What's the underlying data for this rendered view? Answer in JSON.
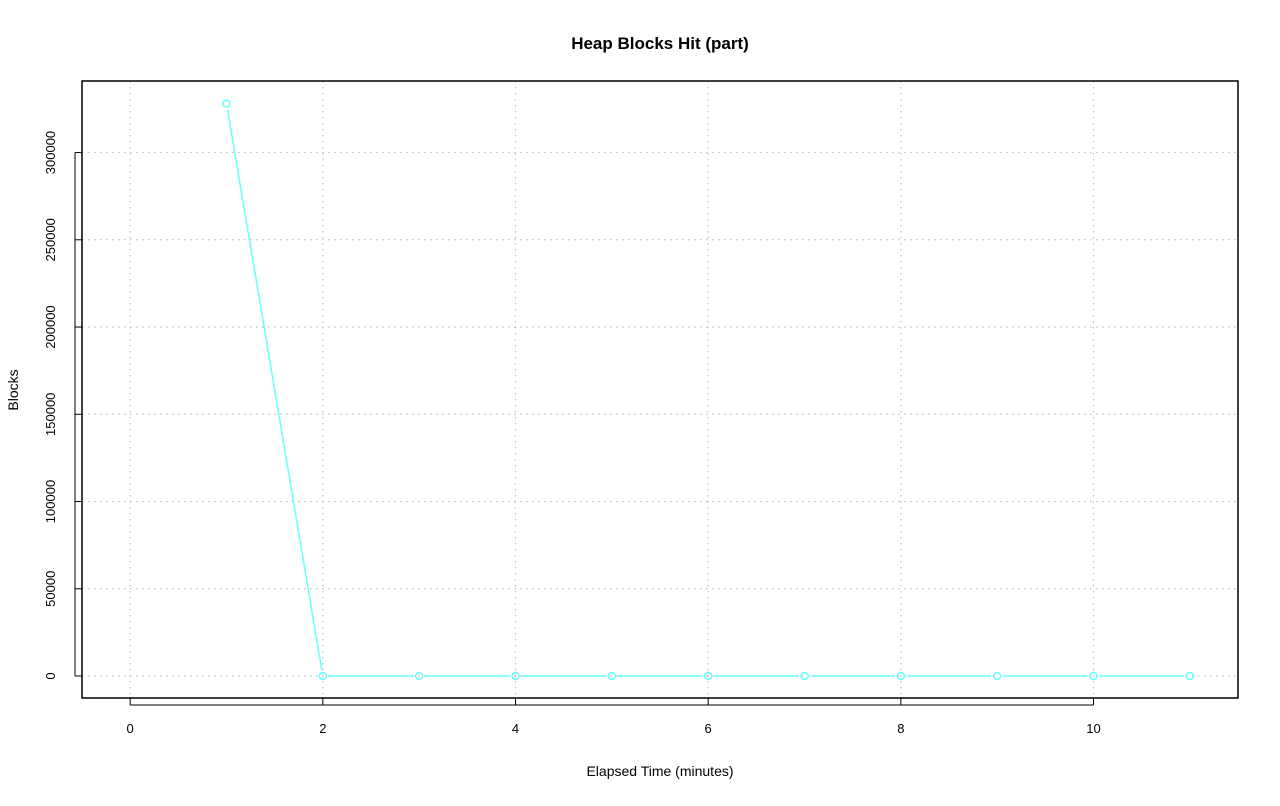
{
  "chart_data": {
    "type": "line",
    "title": "Heap Blocks Hit (part)",
    "xlabel": "Elapsed Time (minutes)",
    "ylabel": "Blocks",
    "x": [
      1,
      2,
      3,
      4,
      5,
      6,
      7,
      8,
      9,
      10,
      11
    ],
    "series": [
      {
        "values": [
          328000,
          0,
          0,
          0,
          0,
          0,
          0,
          0,
          0,
          0,
          0
        ],
        "color": "#66FFFF",
        "markers": "open-circle"
      }
    ],
    "xlim": [
      -0.5,
      11.5
    ],
    "ylim": [
      -12600,
      341000
    ],
    "xticks": [
      0,
      2,
      4,
      6,
      8,
      10
    ],
    "yticks": [
      0,
      50000,
      100000,
      150000,
      200000,
      250000,
      300000
    ],
    "grid": true,
    "grid_style": "dotted",
    "grid_color": "#BEBEBE"
  }
}
